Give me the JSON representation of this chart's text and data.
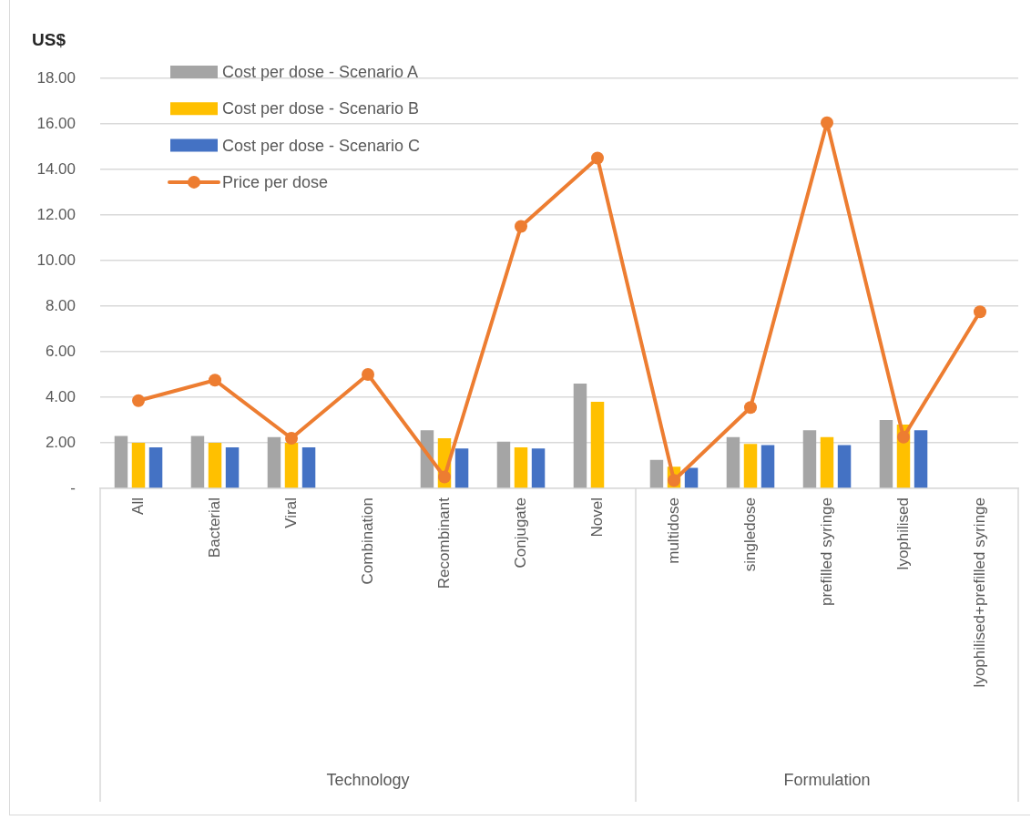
{
  "chart_data": {
    "type": "bar",
    "ylabel": "US$",
    "categories": [
      "All",
      "Bacterial",
      "Viral",
      "Combination",
      "Recombinant",
      "Conjugate",
      "Novel",
      "multidose",
      "singledose",
      "prefilled syringe",
      "lyophilised",
      "lyophilised+prefilled syringe"
    ],
    "series": [
      {
        "name": "Cost per dose - Scenario A",
        "color": "#a5a5a5",
        "values": [
          2.3,
          2.3,
          2.25,
          null,
          2.55,
          2.05,
          4.6,
          1.25,
          2.25,
          2.55,
          3.0,
          null
        ]
      },
      {
        "name": "Cost per dose - Scenario B",
        "color": "#ffc000",
        "values": [
          2.0,
          2.0,
          2.0,
          null,
          2.2,
          1.8,
          3.8,
          0.95,
          1.95,
          2.25,
          2.8,
          null
        ]
      },
      {
        "name": "Cost per dose - Scenario C",
        "color": "#4472c4",
        "values": [
          1.8,
          1.8,
          1.8,
          null,
          1.75,
          1.75,
          null,
          0.9,
          1.9,
          1.9,
          2.55,
          null
        ]
      },
      {
        "name": "Price per dose",
        "type": "line",
        "color": "#ed7d31",
        "marker": "circle",
        "line_style": "solid",
        "values": [
          3.85,
          4.75,
          2.2,
          5.0,
          0.5,
          11.5,
          14.5,
          0.35,
          3.55,
          16.05,
          2.25,
          7.75
        ]
      }
    ],
    "ylim": [
      0,
      18
    ],
    "yticks": [
      {
        "value": 0,
        "label": "-"
      },
      {
        "value": 2,
        "label": "2.00"
      },
      {
        "value": 4,
        "label": "4.00"
      },
      {
        "value": 6,
        "label": "6.00"
      },
      {
        "value": 8,
        "label": "8.00"
      },
      {
        "value": 10,
        "label": "10.00"
      },
      {
        "value": 12,
        "label": "12.00"
      },
      {
        "value": 14,
        "label": "14.00"
      },
      {
        "value": 16,
        "label": "16.00"
      },
      {
        "value": 18,
        "label": "18.00"
      }
    ],
    "grid": "y",
    "legend": "top left",
    "annotations": [
      "Technology",
      "Formulation"
    ]
  }
}
